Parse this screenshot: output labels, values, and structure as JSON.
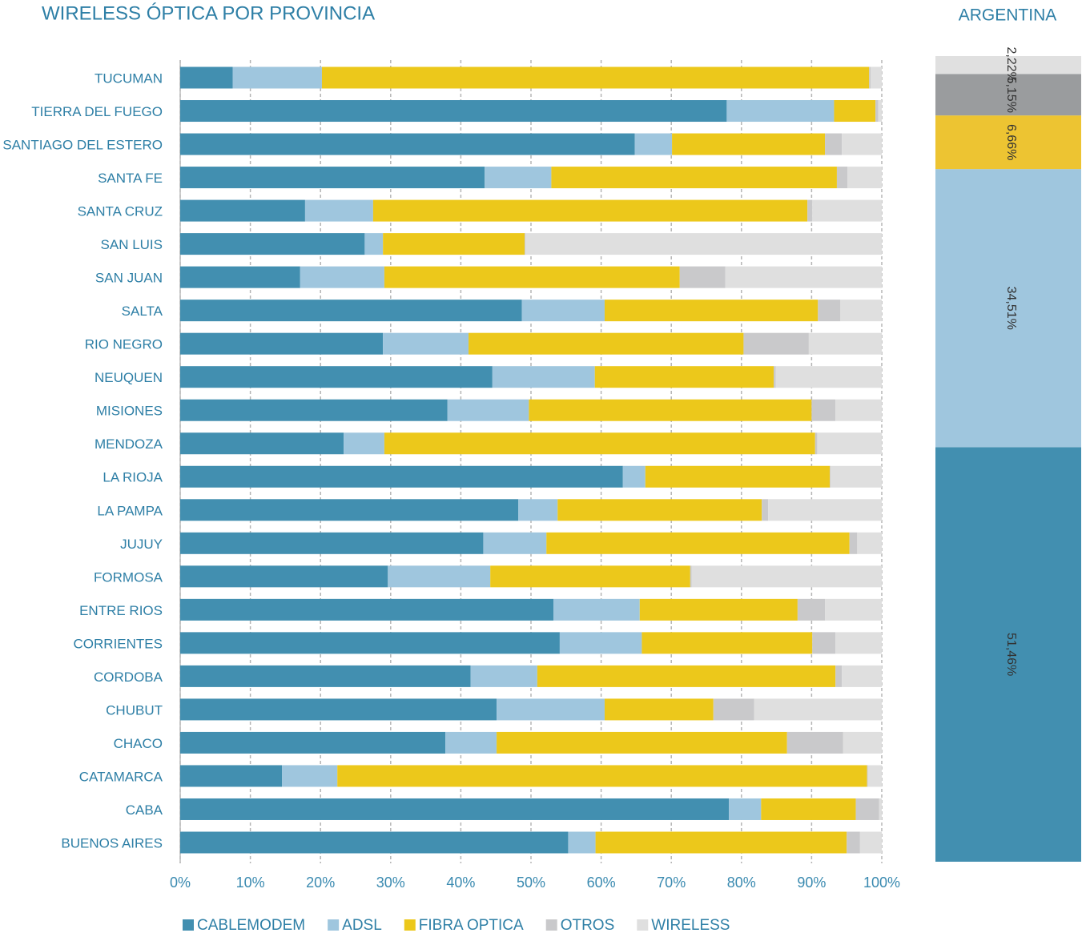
{
  "chart_data": [
    {
      "type": "bar",
      "orientation": "horizontal",
      "stacked": true,
      "title": "WIRELESS ÓPTICA POR PROVINCIA",
      "categories": [
        "TUCUMAN",
        "TIERRA DEL FUEGO",
        "SANTIAGO DEL ESTERO",
        "SANTA FE",
        "SANTA CRUZ",
        "SAN LUIS",
        "SAN JUAN",
        "SALTA",
        "RIO NEGRO",
        "NEUQUEN",
        "MISIONES",
        "MENDOZA",
        "LA RIOJA",
        "LA PAMPA",
        "JUJUY",
        "FORMOSA",
        "ENTRE RIOS",
        "CORRIENTES",
        "CORDOBA",
        "CHUBUT",
        "CHACO",
        "CATAMARCA",
        "CABA",
        "BUENOS AIRES"
      ],
      "series": [
        {
          "name": "CABLEMODEM",
          "color": "#428fb0",
          "values": [
            7.5,
            77.9,
            64.8,
            43.4,
            17.8,
            26.3,
            17.1,
            48.7,
            28.9,
            44.5,
            38.1,
            23.3,
            63.1,
            48.2,
            43.2,
            29.6,
            53.2,
            54.1,
            41.4,
            45.1,
            37.8,
            14.5,
            78.2,
            55.3
          ]
        },
        {
          "name": "ADSL",
          "color": "#9fc6de",
          "values": [
            12.7,
            15.3,
            5.3,
            9.5,
            9.7,
            2.6,
            12.0,
            11.8,
            12.2,
            14.6,
            11.6,
            5.8,
            3.2,
            5.6,
            9.0,
            14.6,
            12.3,
            11.7,
            9.5,
            15.4,
            7.3,
            7.9,
            4.6,
            3.9
          ]
        },
        {
          "name": "FIBRA OPTICA",
          "color": "#ecc81b",
          "values": [
            78.0,
            5.9,
            21.8,
            40.7,
            61.9,
            20.2,
            42.1,
            30.4,
            39.2,
            25.5,
            40.3,
            61.4,
            26.3,
            29.1,
            43.2,
            28.5,
            22.5,
            24.3,
            42.5,
            15.5,
            41.4,
            75.5,
            13.5,
            35.8
          ]
        },
        {
          "name": "OTROS",
          "color": "#c9c9cb",
          "values": [
            0.2,
            0.4,
            2.4,
            1.5,
            0.7,
            0.1,
            6.5,
            3.2,
            9.3,
            0.3,
            3.4,
            0.3,
            0.1,
            0.9,
            1.1,
            0.2,
            3.9,
            3.3,
            0.9,
            5.8,
            8.0,
            0.1,
            3.3,
            1.9
          ]
        },
        {
          "name": "WIRELESS",
          "color": "#dfdfdf",
          "values": [
            1.6,
            0.5,
            5.7,
            4.9,
            9.9,
            50.8,
            22.3,
            5.9,
            10.4,
            15.1,
            6.6,
            9.2,
            7.3,
            16.2,
            3.5,
            27.1,
            8.1,
            6.6,
            5.7,
            18.2,
            5.5,
            2.0,
            0.4,
            3.1
          ]
        }
      ],
      "xlim": [
        0,
        100
      ],
      "xticks": [
        {
          "value": 0,
          "label": "0%"
        },
        {
          "value": 10,
          "label": "10%"
        },
        {
          "value": 20,
          "label": "20%"
        },
        {
          "value": 30,
          "label": "30%"
        },
        {
          "value": 40,
          "label": "40%"
        },
        {
          "value": 50,
          "label": "50%"
        },
        {
          "value": 60,
          "label": "60%"
        },
        {
          "value": 70,
          "label": "70%"
        },
        {
          "value": 80,
          "label": "80%"
        },
        {
          "value": 90,
          "label": "90%"
        },
        {
          "value": 100,
          "label": "100%"
        }
      ],
      "grid": true,
      "legend": "bottom"
    },
    {
      "type": "stacked_column",
      "title": "ARGENTINA",
      "series": [
        {
          "name": "CABLEMODEM",
          "color": "#428fb0",
          "values": [
            51.46
          ],
          "value_labels": [
            "51,46%"
          ]
        },
        {
          "name": "ADSL",
          "color": "#9fc6de",
          "values": [
            34.51
          ],
          "value_labels": [
            "34,51%"
          ]
        },
        {
          "name": "FIBRA OPTICA",
          "color": "#edc432",
          "values": [
            6.66
          ],
          "value_labels": [
            "6,66%"
          ]
        },
        {
          "name": "OTROS",
          "color": "#9a9c9e",
          "values": [
            5.15
          ],
          "value_labels": [
            "5,15%"
          ]
        },
        {
          "name": "WIRELESS",
          "color": "#e0e0e0",
          "values": [
            2.22
          ],
          "value_labels": [
            "2,22%"
          ]
        }
      ],
      "ylim": [
        0,
        100
      ]
    }
  ]
}
